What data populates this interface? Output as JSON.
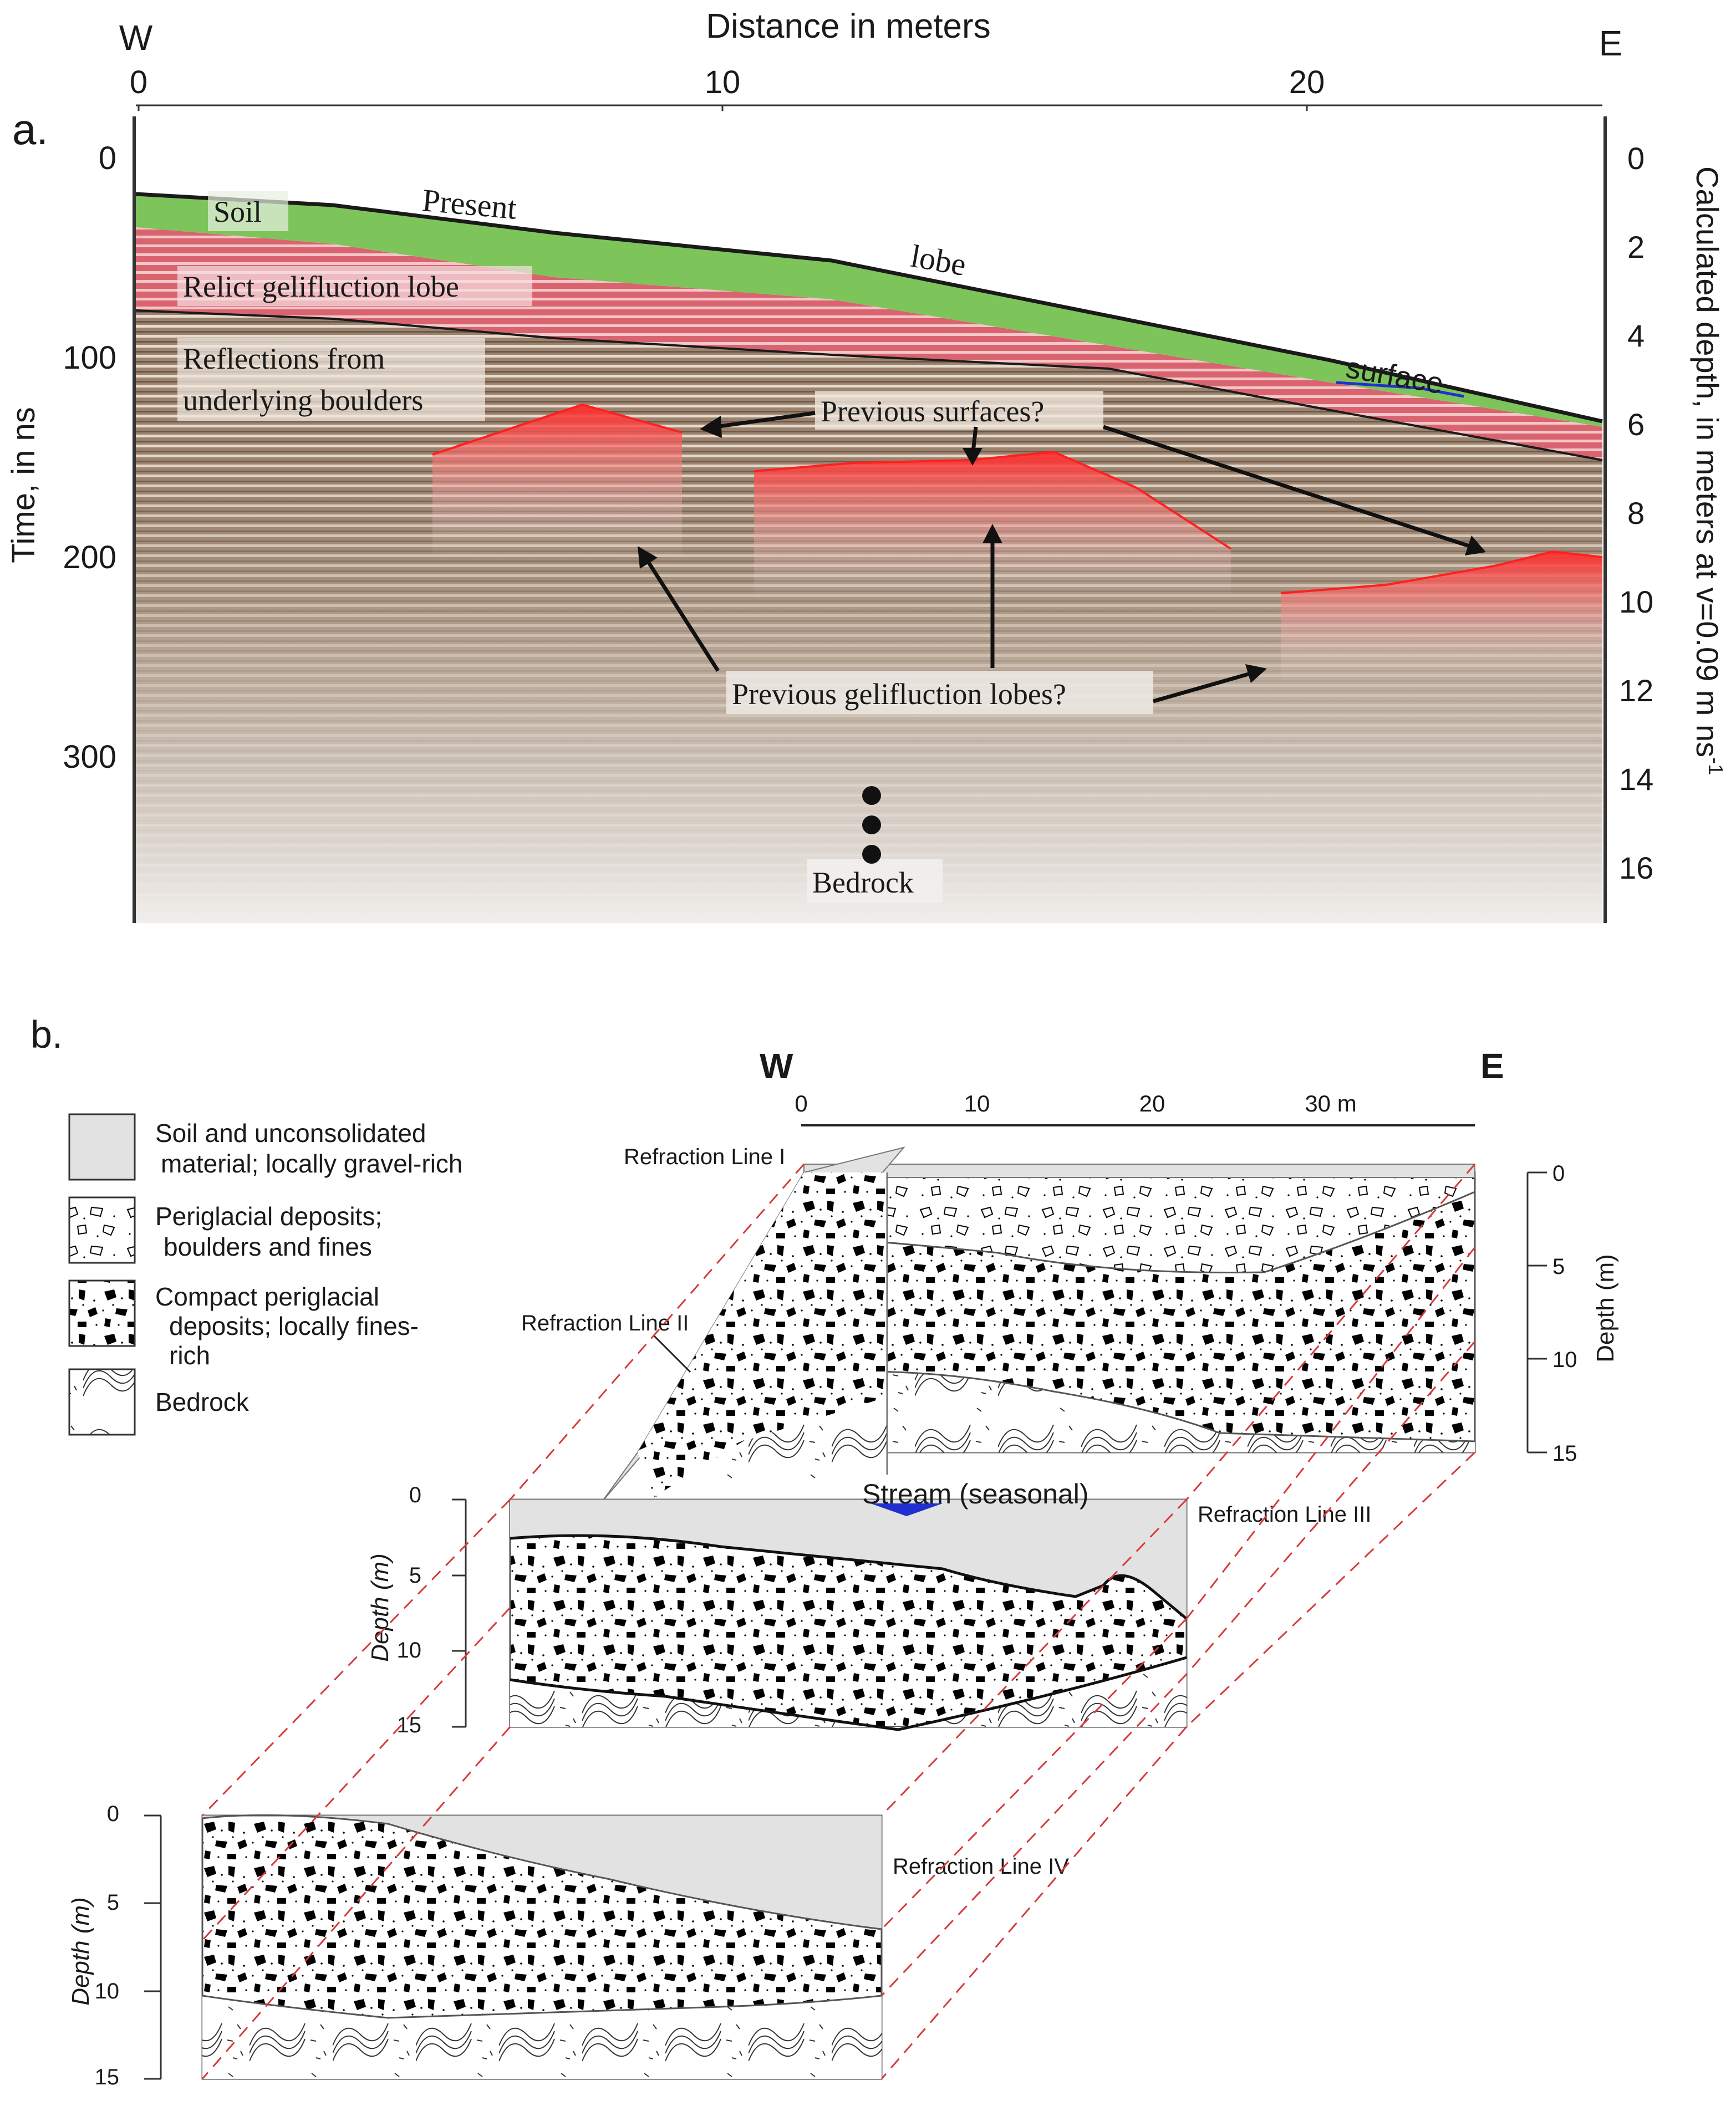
{
  "panel_a": {
    "panel_label": "a.",
    "title": "Distance in meters",
    "west": "W",
    "east": "E",
    "x_ticks": [
      "0",
      "10",
      "20"
    ],
    "y_left_label": "Time, in ns",
    "y_left_ticks": [
      "0",
      "100",
      "200",
      "300"
    ],
    "y_right_label": "Calculated depth, in meters at v=0.09 m ns",
    "y_right_label_sup": "-1",
    "y_right_ticks": [
      "0",
      "2",
      "4",
      "6",
      "8",
      "10",
      "12",
      "14",
      "16"
    ],
    "layers": {
      "soil": "Soil",
      "relict": "Relict gelifluction lobe",
      "reflections_1": "Reflections from",
      "reflections_2": "underlying boulders"
    },
    "surface_words": [
      "Present",
      "lobe",
      "surface"
    ],
    "callouts": {
      "previous_surfaces": "Previous surfaces?",
      "previous_lobes": "Previous gelifluction lobes?",
      "bedrock": "Bedrock"
    },
    "colors": {
      "soil": "#7dc55a",
      "relict": "#d96470",
      "sediment": "#9b8370",
      "highlight": "#f04646"
    }
  },
  "panel_b": {
    "panel_label": "b.",
    "west": "W",
    "east": "E",
    "scale_ticks": [
      "0",
      "10",
      "20",
      "30 m"
    ],
    "legend": [
      {
        "line1": "Soil and unconsolidated",
        "line2": "material; locally gravel-rich",
        "line3": ""
      },
      {
        "line1": "Periglacial deposits;",
        "line2": "boulders and fines",
        "line3": ""
      },
      {
        "line1": "Compact periglacial",
        "line2": "deposits; locally fines-",
        "line3": "rich"
      },
      {
        "line1": "Bedrock",
        "line2": "",
        "line3": ""
      }
    ],
    "lines": {
      "line_1": "Refraction Line I",
      "line_2": "Refraction Line II",
      "line_3": "Refraction Line III",
      "line_4": "Refraction Line IV"
    },
    "stream": "Stream (seasonal)",
    "depth_label": "Depth (m)",
    "depth_label_italic": "Depth (m)",
    "depth_ticks": [
      "0",
      "5",
      "10",
      "15"
    ],
    "colors": {
      "soil": "#e2e2e2",
      "stream": "#1f2fd0",
      "dash": "#d83a3a"
    }
  }
}
